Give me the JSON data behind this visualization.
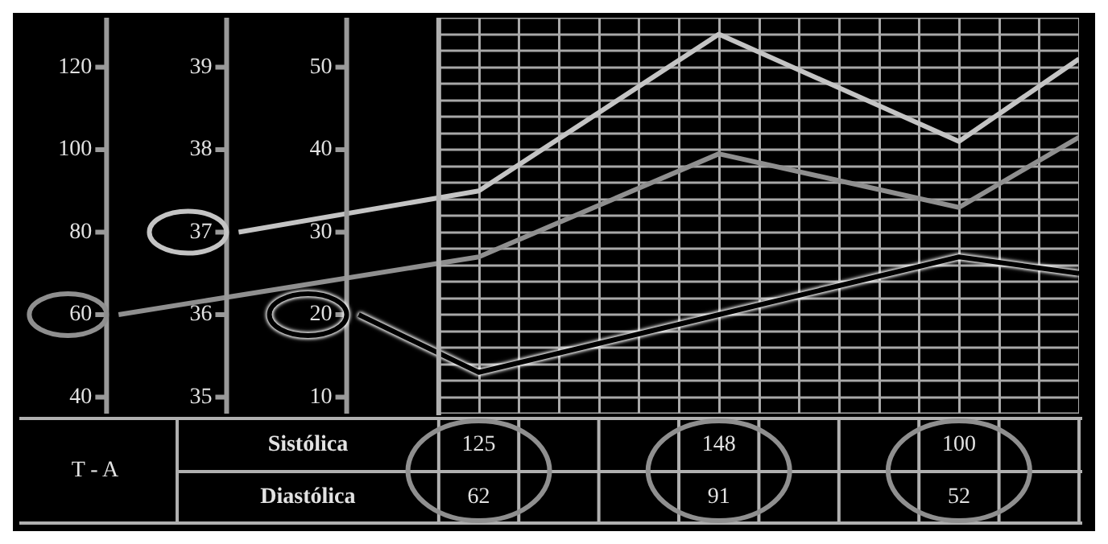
{
  "chart_data": [
    {
      "type": "line",
      "categories": [
        null,
        null,
        null,
        null,
        null,
        null,
        null,
        null,
        null
      ],
      "ylim": [
        36,
        132
      ],
      "yticks": [
        40,
        60,
        80,
        100,
        120
      ],
      "y2lim": [
        34.8,
        39.6
      ],
      "y2ticks": [
        35,
        36,
        37,
        38,
        39
      ],
      "y3lim": [
        8,
        56
      ],
      "y3ticks": [
        10,
        20,
        30,
        40,
        50
      ],
      "tick_labels": "y",
      "grid": true,
      "series": [
        {
          "color": "#c4c4c4",
          "axis": "y2",
          "values": [
            null,
            37,
            null,
            37.5,
            null,
            39.4,
            null,
            38.1,
            39.1
          ]
        },
        {
          "color": "#8f8f8f",
          "axis": "y",
          "values": [
            60,
            null,
            null,
            74,
            null,
            99,
            null,
            86,
            103
          ]
        },
        {
          "color": "#000000",
          "axis": "y3",
          "values": [
            null,
            null,
            20,
            13,
            null,
            20,
            null,
            27,
            25
          ]
        }
      ]
    },
    {
      "type": "other",
      "annotations": [
        "T - A",
        "Sistólica",
        "Diastólica",
        "125",
        "62",
        "148",
        "91",
        "100",
        "52"
      ]
    }
  ]
}
